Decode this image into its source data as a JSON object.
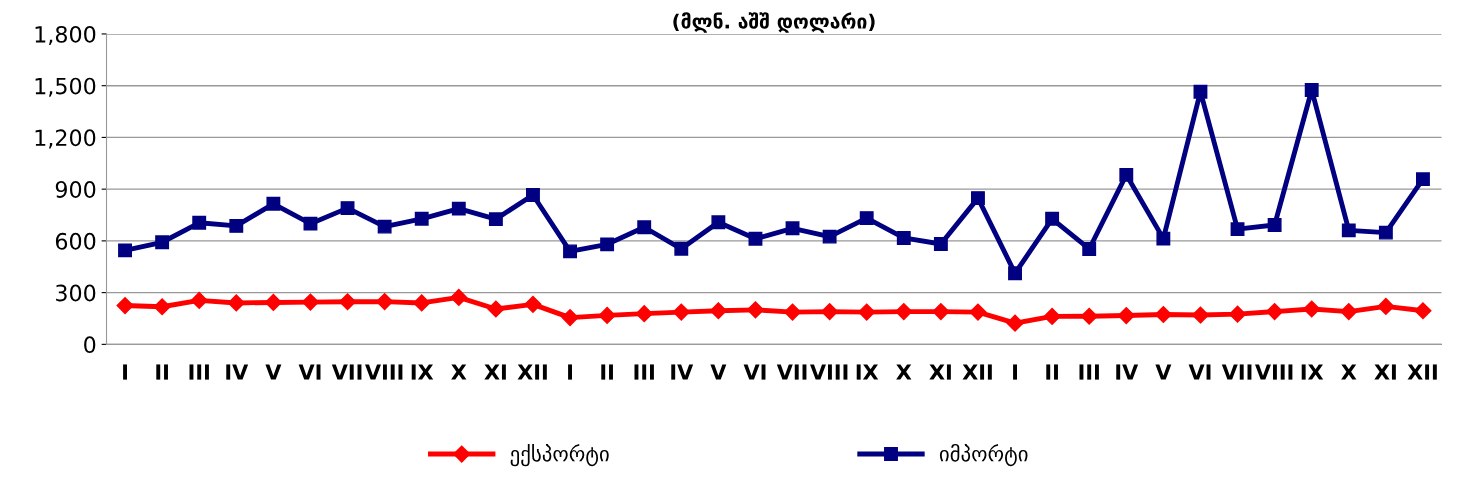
{
  "chart_data": {
    "type": "line",
    "title": "(მლნ. აშშ დოლარი)",
    "categories": [
      "I",
      "II",
      "III",
      "IV",
      "V",
      "VI",
      "VII",
      "VIII",
      "IX",
      "X",
      "XI",
      "XII",
      "I",
      "II",
      "III",
      "IV",
      "V",
      "VI",
      "VII",
      "VIII",
      "IX",
      "X",
      "XI",
      "XII",
      "I",
      "II",
      "III",
      "IV",
      "V",
      "VI",
      "VII",
      "VIII",
      "IX",
      "X",
      "XI",
      "XII"
    ],
    "series": [
      {
        "name": "ექსპორტი",
        "color": "#ff0000",
        "marker": "diamond",
        "values": [
          225,
          218,
          255,
          240,
          243,
          245,
          247,
          248,
          240,
          272,
          205,
          232,
          155,
          168,
          178,
          187,
          195,
          200,
          187,
          190,
          187,
          190,
          190,
          187,
          123,
          162,
          163,
          167,
          173,
          170,
          175,
          190,
          205,
          190,
          220,
          195
        ]
      },
      {
        "name": "იმპორტი",
        "color": "#000080",
        "marker": "square",
        "values": [
          545,
          592,
          705,
          687,
          815,
          700,
          790,
          683,
          728,
          787,
          726,
          866,
          539,
          580,
          679,
          554,
          708,
          612,
          673,
          625,
          732,
          617,
          582,
          848,
          412,
          728,
          553,
          983,
          613,
          1465,
          668,
          692,
          1475,
          661,
          648,
          958
        ]
      }
    ],
    "ylim": [
      0,
      1800
    ],
    "yticks": [
      {
        "value": 0,
        "label": "0"
      },
      {
        "value": 300,
        "label": "300"
      },
      {
        "value": 600,
        "label": "600"
      },
      {
        "value": 900,
        "label": "900"
      },
      {
        "value": 1200,
        "label": "1,200"
      },
      {
        "value": 1500,
        "label": "1,500"
      },
      {
        "value": 1800,
        "label": "1,800"
      }
    ],
    "grid": "y",
    "legend": "bottom",
    "line_style": "solid"
  }
}
